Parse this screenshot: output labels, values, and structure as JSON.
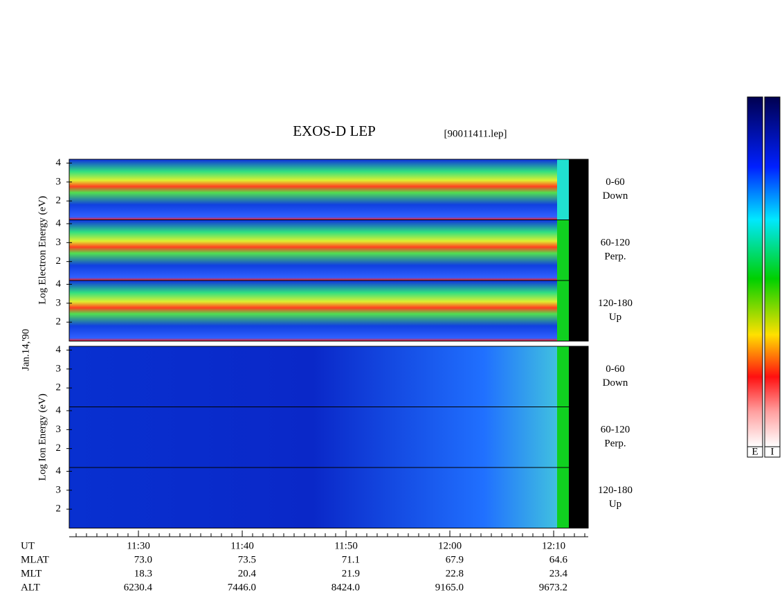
{
  "chart_data": {
    "type": "spectrogram",
    "title": "EXOS-D LEP",
    "file": "[90011411.lep]",
    "date": "Jan.14,'90",
    "xlabel": "UT",
    "xlim": [
      683.33,
      733.33
    ],
    "xticks": [
      {
        "value": 690,
        "label": "11:30"
      },
      {
        "value": 700,
        "label": "11:40"
      },
      {
        "value": 710,
        "label": "11:50"
      },
      {
        "value": 720,
        "label": "12:00"
      },
      {
        "value": 730,
        "label": "12:10"
      }
    ],
    "ylim": [
      1,
      4.2
    ],
    "yticks": [
      2,
      3,
      4
    ],
    "groups": [
      {
        "ylabel": "Log  Electron  Energy (eV)",
        "panels": [
          {
            "angle": "0-60",
            "direction": "Down"
          },
          {
            "angle": "60-120",
            "direction": "Perp."
          },
          {
            "angle": "120-180",
            "direction": "Up"
          }
        ]
      },
      {
        "ylabel": "Log  Ion  Energy (eV)",
        "panels": [
          {
            "angle": "0-60",
            "direction": "Down"
          },
          {
            "angle": "60-120",
            "direction": "Perp."
          },
          {
            "angle": "120-180",
            "direction": "Up"
          }
        ]
      }
    ],
    "ephemeris": [
      {
        "name": "MLAT",
        "values": [
          "73.0",
          "73.5",
          "71.1",
          "67.9",
          "64.6"
        ]
      },
      {
        "name": "MLT",
        "values": [
          "18.3",
          "20.4",
          "21.9",
          "22.8",
          "23.4"
        ]
      },
      {
        "name": "ALT",
        "values": [
          "6230.4",
          "7446.0",
          "8424.0",
          "9165.0",
          "9673.2"
        ]
      }
    ],
    "colorbars": [
      "E",
      "I"
    ]
  }
}
